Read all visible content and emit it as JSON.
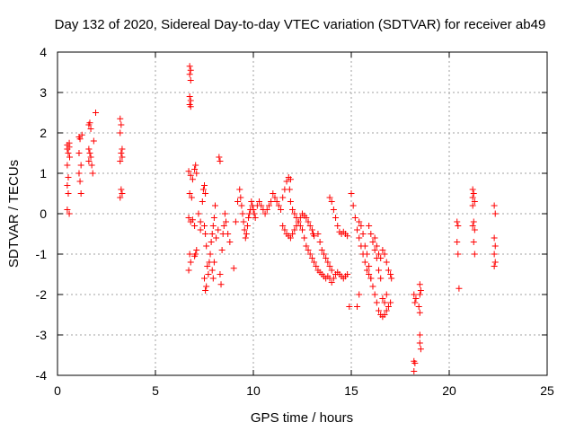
{
  "chart_data": {
    "type": "scatter",
    "title": "Day 132 of 2020, Sidereal Day-to-day VTEC variation (SDTVAR) for receiver ab49",
    "xlabel": "GPS time / hours",
    "ylabel": "SDTVAR / TECUs",
    "xlim": [
      0,
      25
    ],
    "ylim": [
      -4,
      4
    ],
    "xticks": [
      0,
      5,
      10,
      15,
      20,
      25
    ],
    "xtick_labels": [
      "0",
      "5",
      "10",
      "15",
      "20",
      "25"
    ],
    "yticks": [
      -4,
      -3,
      -2,
      -1,
      0,
      1,
      2,
      3,
      4
    ],
    "ytick_labels": [
      "-4",
      "-3",
      "-2",
      "-1",
      "0",
      "1",
      "2",
      "3",
      "4"
    ],
    "grid": true,
    "marker": "+",
    "marker_color": "#ff0000",
    "series": [
      {
        "name": "SDTVAR",
        "points": [
          [
            0.5,
            1.7
          ],
          [
            0.5,
            1.6
          ],
          [
            0.55,
            1.5
          ],
          [
            0.5,
            1.2
          ],
          [
            0.55,
            0.9
          ],
          [
            0.5,
            0.7
          ],
          [
            0.55,
            0.5
          ],
          [
            0.5,
            0.1
          ],
          [
            0.6,
            0.0
          ],
          [
            0.6,
            1.75
          ],
          [
            0.6,
            1.65
          ],
          [
            0.62,
            1.4
          ],
          [
            1.1,
            1.9
          ],
          [
            1.15,
            1.85
          ],
          [
            1.1,
            1.5
          ],
          [
            1.2,
            1.2
          ],
          [
            1.1,
            1.0
          ],
          [
            1.15,
            0.8
          ],
          [
            1.2,
            0.5
          ],
          [
            1.25,
            1.95
          ],
          [
            1.6,
            2.2
          ],
          [
            1.65,
            2.25
          ],
          [
            1.7,
            2.1
          ],
          [
            1.6,
            1.6
          ],
          [
            1.65,
            1.5
          ],
          [
            1.7,
            1.4
          ],
          [
            1.6,
            1.3
          ],
          [
            1.75,
            1.2
          ],
          [
            1.8,
            1.0
          ],
          [
            1.85,
            1.8
          ],
          [
            1.95,
            2.5
          ],
          [
            3.2,
            2.35
          ],
          [
            3.25,
            2.2
          ],
          [
            3.2,
            2.0
          ],
          [
            3.3,
            1.6
          ],
          [
            3.25,
            1.5
          ],
          [
            3.3,
            1.4
          ],
          [
            3.2,
            1.3
          ],
          [
            3.25,
            0.6
          ],
          [
            3.3,
            0.5
          ],
          [
            3.2,
            0.4
          ],
          [
            6.75,
            3.65
          ],
          [
            6.8,
            3.55
          ],
          [
            6.75,
            3.45
          ],
          [
            6.8,
            3.3
          ],
          [
            6.75,
            2.9
          ],
          [
            6.8,
            2.8
          ],
          [
            6.75,
            2.7
          ],
          [
            6.8,
            2.65
          ],
          [
            6.7,
            1.05
          ],
          [
            6.8,
            0.95
          ],
          [
            6.9,
            0.85
          ],
          [
            7.0,
            1.1
          ],
          [
            7.05,
            1.2
          ],
          [
            7.1,
            1.0
          ],
          [
            6.75,
            0.5
          ],
          [
            6.85,
            0.4
          ],
          [
            6.7,
            -0.1
          ],
          [
            6.8,
            -0.2
          ],
          [
            6.9,
            -0.15
          ],
          [
            7.0,
            -0.3
          ],
          [
            6.75,
            -1.0
          ],
          [
            6.8,
            -1.2
          ],
          [
            6.7,
            -1.4
          ],
          [
            7.0,
            -1.05
          ],
          [
            7.05,
            -1.0
          ],
          [
            7.1,
            -0.9
          ],
          [
            7.2,
            0.0
          ],
          [
            7.3,
            -0.2
          ],
          [
            7.3,
            -0.4
          ],
          [
            7.4,
            0.3
          ],
          [
            7.45,
            0.6
          ],
          [
            7.5,
            0.7
          ],
          [
            7.55,
            0.5
          ],
          [
            7.5,
            -0.3
          ],
          [
            7.55,
            -0.5
          ],
          [
            7.6,
            -0.8
          ],
          [
            7.65,
            -1.3
          ],
          [
            7.5,
            -1.6
          ],
          [
            7.55,
            -1.9
          ],
          [
            7.6,
            -1.8
          ],
          [
            7.7,
            -1.5
          ],
          [
            7.75,
            -1.2
          ],
          [
            7.8,
            -1.0
          ],
          [
            7.85,
            -0.7
          ],
          [
            7.9,
            -0.5
          ],
          [
            7.95,
            -0.3
          ],
          [
            8.0,
            -0.1
          ],
          [
            8.05,
            0.2
          ],
          [
            7.9,
            -1.4
          ],
          [
            7.95,
            -1.6
          ],
          [
            8.0,
            -1.2
          ],
          [
            8.1,
            -0.6
          ],
          [
            8.2,
            -0.4
          ],
          [
            8.25,
            1.4
          ],
          [
            8.3,
            1.3
          ],
          [
            8.3,
            -1.5
          ],
          [
            8.35,
            -1.75
          ],
          [
            8.4,
            -0.9
          ],
          [
            8.45,
            -0.5
          ],
          [
            8.5,
            -0.3
          ],
          [
            8.55,
            0.0
          ],
          [
            8.6,
            -0.2
          ],
          [
            8.7,
            -0.5
          ],
          [
            8.8,
            -0.7
          ],
          [
            9.0,
            -1.35
          ],
          [
            9.1,
            -0.2
          ],
          [
            9.2,
            0.3
          ],
          [
            9.3,
            0.6
          ],
          [
            9.35,
            0.4
          ],
          [
            9.4,
            0.2
          ],
          [
            9.45,
            0.0
          ],
          [
            9.5,
            -0.2
          ],
          [
            9.55,
            -0.4
          ],
          [
            9.6,
            -0.6
          ],
          [
            9.65,
            -0.5
          ],
          [
            9.7,
            -0.3
          ],
          [
            9.75,
            -0.1
          ],
          [
            9.8,
            0.0
          ],
          [
            9.85,
            0.1
          ],
          [
            9.9,
            0.3
          ],
          [
            9.95,
            0.2
          ],
          [
            10.0,
            0.1
          ],
          [
            10.05,
            0.0
          ],
          [
            10.1,
            -0.1
          ],
          [
            10.2,
            0.2
          ],
          [
            10.3,
            0.3
          ],
          [
            10.4,
            0.2
          ],
          [
            10.5,
            0.1
          ],
          [
            10.6,
            0.0
          ],
          [
            10.7,
            0.1
          ],
          [
            10.8,
            0.2
          ],
          [
            10.9,
            0.3
          ],
          [
            11.0,
            0.5
          ],
          [
            11.1,
            0.4
          ],
          [
            11.2,
            0.3
          ],
          [
            11.3,
            0.2
          ],
          [
            11.4,
            0.1
          ],
          [
            11.5,
            0.4
          ],
          [
            11.6,
            0.6
          ],
          [
            11.7,
            0.8
          ],
          [
            11.8,
            0.9
          ],
          [
            11.9,
            0.85
          ],
          [
            11.85,
            0.6
          ],
          [
            11.9,
            0.3
          ],
          [
            12.0,
            0.1
          ],
          [
            12.1,
            0.0
          ],
          [
            12.2,
            -0.1
          ],
          [
            12.3,
            -0.2
          ],
          [
            12.4,
            -0.1
          ],
          [
            12.5,
            0.0
          ],
          [
            12.6,
            -0.05
          ],
          [
            12.7,
            -0.1
          ],
          [
            12.8,
            -0.2
          ],
          [
            12.9,
            -0.3
          ],
          [
            13.0,
            -0.4
          ],
          [
            13.05,
            -0.5
          ],
          [
            13.1,
            -0.55
          ],
          [
            11.5,
            -0.3
          ],
          [
            11.6,
            -0.4
          ],
          [
            11.7,
            -0.5
          ],
          [
            11.8,
            -0.55
          ],
          [
            11.9,
            -0.6
          ],
          [
            12.0,
            -0.5
          ],
          [
            12.1,
            -0.4
          ],
          [
            12.2,
            -0.3
          ],
          [
            12.3,
            -0.2
          ],
          [
            12.4,
            -0.3
          ],
          [
            12.5,
            -0.4
          ],
          [
            12.6,
            -0.6
          ],
          [
            12.7,
            -0.8
          ],
          [
            12.8,
            -0.9
          ],
          [
            12.9,
            -1.0
          ],
          [
            13.0,
            -1.1
          ],
          [
            13.1,
            -1.2
          ],
          [
            13.2,
            -1.3
          ],
          [
            13.3,
            -1.4
          ],
          [
            13.4,
            -1.45
          ],
          [
            13.5,
            -1.5
          ],
          [
            13.6,
            -1.55
          ],
          [
            13.7,
            -1.6
          ],
          [
            13.8,
            -1.55
          ],
          [
            13.9,
            -1.6
          ],
          [
            14.0,
            -1.7
          ],
          [
            14.1,
            -1.6
          ],
          [
            14.2,
            -1.5
          ],
          [
            14.3,
            -1.45
          ],
          [
            14.4,
            -1.5
          ],
          [
            14.5,
            -1.55
          ],
          [
            14.6,
            -1.6
          ],
          [
            14.7,
            -1.55
          ],
          [
            14.8,
            -1.5
          ],
          [
            13.3,
            -0.5
          ],
          [
            13.4,
            -0.7
          ],
          [
            13.5,
            -0.9
          ],
          [
            13.6,
            -1.0
          ],
          [
            13.7,
            -1.1
          ],
          [
            13.8,
            -1.2
          ],
          [
            13.9,
            -1.3
          ],
          [
            14.0,
            -1.4
          ],
          [
            13.9,
            0.4
          ],
          [
            14.0,
            0.3
          ],
          [
            14.1,
            0.1
          ],
          [
            14.2,
            -0.1
          ],
          [
            14.3,
            -0.3
          ],
          [
            14.4,
            -0.45
          ],
          [
            14.5,
            -0.5
          ],
          [
            14.6,
            -0.45
          ],
          [
            14.7,
            -0.5
          ],
          [
            14.8,
            -0.55
          ],
          [
            14.9,
            -2.3
          ],
          [
            15.0,
            0.5
          ],
          [
            15.1,
            0.2
          ],
          [
            15.2,
            -0.1
          ],
          [
            15.3,
            -0.4
          ],
          [
            15.4,
            -0.6
          ],
          [
            15.5,
            -0.8
          ],
          [
            15.6,
            -1.0
          ],
          [
            15.7,
            -1.2
          ],
          [
            15.8,
            -1.4
          ],
          [
            15.9,
            -1.5
          ],
          [
            16.0,
            -1.6
          ],
          [
            15.4,
            -0.2
          ],
          [
            15.5,
            -0.3
          ],
          [
            15.6,
            -0.5
          ],
          [
            15.7,
            -0.8
          ],
          [
            15.8,
            -1.0
          ],
          [
            15.9,
            -1.3
          ],
          [
            16.0,
            -1.6
          ],
          [
            16.1,
            -1.8
          ],
          [
            16.2,
            -2.0
          ],
          [
            16.3,
            -2.2
          ],
          [
            16.4,
            -2.4
          ],
          [
            16.5,
            -2.5
          ],
          [
            16.6,
            -2.55
          ],
          [
            16.7,
            -2.5
          ],
          [
            16.8,
            -2.4
          ],
          [
            16.9,
            -2.3
          ],
          [
            17.0,
            -2.2
          ],
          [
            16.2,
            -0.6
          ],
          [
            16.3,
            -0.8
          ],
          [
            16.4,
            -1.0
          ],
          [
            16.5,
            -1.1
          ],
          [
            16.6,
            -0.9
          ],
          [
            16.7,
            -1.0
          ],
          [
            16.8,
            -1.2
          ],
          [
            16.9,
            -1.4
          ],
          [
            17.0,
            -1.5
          ],
          [
            17.05,
            -1.6
          ],
          [
            15.9,
            -0.3
          ],
          [
            16.0,
            -0.5
          ],
          [
            16.1,
            -0.7
          ],
          [
            16.2,
            -0.9
          ],
          [
            16.3,
            -1.1
          ],
          [
            16.4,
            -1.4
          ],
          [
            16.5,
            -1.6
          ],
          [
            16.6,
            -2.1
          ],
          [
            16.7,
            -2.2
          ],
          [
            16.8,
            -2.0
          ],
          [
            15.3,
            -2.3
          ],
          [
            15.4,
            -2.0
          ],
          [
            18.2,
            -2.0
          ],
          [
            18.25,
            -2.2
          ],
          [
            18.3,
            -2.1
          ],
          [
            18.2,
            -3.65
          ],
          [
            18.25,
            -3.7
          ],
          [
            18.2,
            -3.9
          ],
          [
            18.5,
            -1.75
          ],
          [
            18.55,
            -1.9
          ],
          [
            18.5,
            -2.0
          ],
          [
            18.45,
            -2.3
          ],
          [
            18.5,
            -2.45
          ],
          [
            18.5,
            -3.2
          ],
          [
            18.55,
            -3.35
          ],
          [
            18.5,
            -3.0
          ],
          [
            20.4,
            -0.2
          ],
          [
            20.45,
            -0.3
          ],
          [
            20.4,
            -0.7
          ],
          [
            20.45,
            -1.0
          ],
          [
            20.5,
            -1.85
          ],
          [
            21.2,
            0.6
          ],
          [
            21.25,
            0.5
          ],
          [
            21.2,
            0.4
          ],
          [
            21.3,
            0.3
          ],
          [
            21.2,
            0.2
          ],
          [
            21.25,
            -0.2
          ],
          [
            21.2,
            -0.3
          ],
          [
            21.3,
            -0.4
          ],
          [
            21.25,
            -0.7
          ],
          [
            21.3,
            -1.0
          ],
          [
            22.3,
            0.2
          ],
          [
            22.35,
            0.0
          ],
          [
            22.3,
            -0.6
          ],
          [
            22.35,
            -0.8
          ],
          [
            22.3,
            -1.0
          ],
          [
            22.35,
            -1.2
          ],
          [
            22.3,
            -1.3
          ]
        ]
      }
    ]
  }
}
